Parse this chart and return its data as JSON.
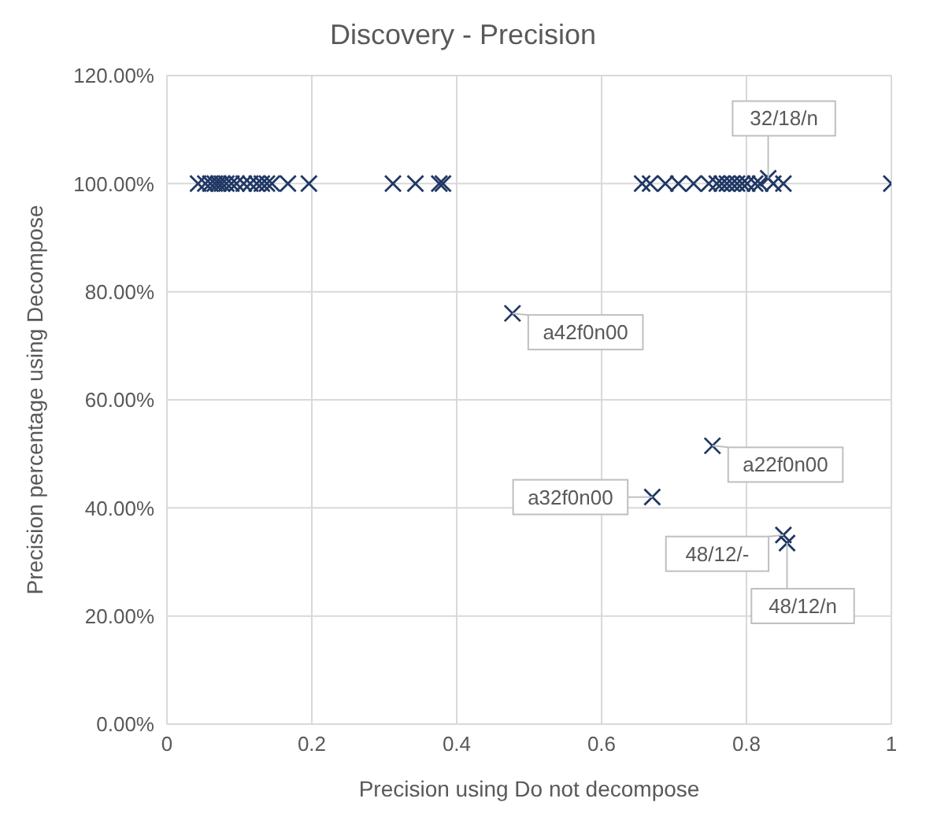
{
  "chart_data": {
    "type": "scatter",
    "title": "Discovery - Precision",
    "xlabel": "Precision using Do not decompose",
    "ylabel": "Precision percentage using Decompose",
    "x": [
      0.043,
      0.053,
      0.06,
      0.066,
      0.071,
      0.076,
      0.082,
      0.089,
      0.096,
      0.106,
      0.115,
      0.124,
      0.131,
      0.138,
      0.145,
      0.167,
      0.196,
      0.312,
      0.343,
      0.376,
      0.381,
      0.656,
      0.667,
      0.688,
      0.706,
      0.727,
      0.748,
      0.759,
      0.766,
      0.773,
      0.78,
      0.787,
      0.794,
      0.801,
      0.812,
      0.819,
      0.83,
      0.837,
      0.851,
      1.0,
      0.477,
      0.753,
      0.67,
      0.851,
      0.856
    ],
    "values": [
      100,
      100,
      100,
      100,
      100,
      100,
      100,
      100,
      100,
      100,
      100,
      100,
      100,
      100,
      100,
      100,
      100,
      100,
      100,
      100,
      100,
      100,
      100,
      100,
      100,
      100,
      100,
      100,
      100,
      100,
      100,
      100,
      100,
      100,
      100,
      100,
      101,
      100,
      100,
      100,
      76,
      51.5,
      42,
      35,
      33.5
    ],
    "color": "#203864",
    "marker": "cross",
    "grid": true,
    "xlim": [
      0,
      1
    ],
    "xticks": [
      0,
      0.2,
      0.4,
      0.6,
      0.8,
      1
    ],
    "ylim": [
      0,
      120
    ],
    "yticks": [
      {
        "value": 0,
        "label": "0.00%"
      },
      {
        "value": 20,
        "label": "20.00%"
      },
      {
        "value": 40,
        "label": "40.00%"
      },
      {
        "value": 60,
        "label": "60.00%"
      },
      {
        "value": 80,
        "label": "80.00%"
      },
      {
        "value": 100,
        "label": "100.00%"
      },
      {
        "value": 120,
        "label": "120.00%"
      }
    ],
    "annotations": [
      {
        "text": "32/18/n",
        "x": 0.83,
        "y": 101
      },
      {
        "text": "a42f0n00",
        "x": 0.477,
        "y": 76
      },
      {
        "text": "a22f0n00",
        "x": 0.753,
        "y": 51.5
      },
      {
        "text": "a32f0n00",
        "x": 0.67,
        "y": 42
      },
      {
        "text": "48/12/-",
        "x": 0.851,
        "y": 35
      },
      {
        "text": "48/12/n",
        "x": 0.856,
        "y": 33.5
      }
    ]
  }
}
